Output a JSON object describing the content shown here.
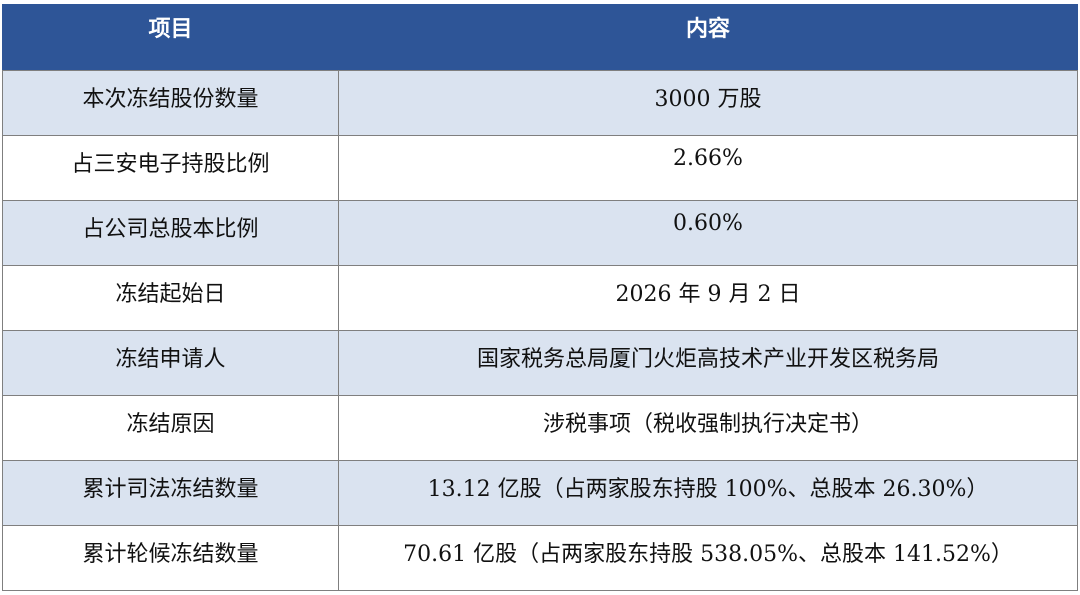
{
  "table": {
    "header": [
      "项目",
      "内容"
    ],
    "rows": [
      [
        "本次冻结股份数量",
        "3000 万股"
      ],
      [
        "占三安电子持股比例",
        "2.66%"
      ],
      [
        "占公司总股本比例",
        "0.60%"
      ],
      [
        "冻结起始日",
        "2026 年 9 月 2 日"
      ],
      [
        "冻结申请人",
        "国家税务总局厦门火炬高技术产业开发区税务局"
      ],
      [
        "冻结原因",
        "涉税事项（税收强制执行决定书）"
      ],
      [
        "累计司法冻结数量",
        "13.12 亿股（占两家股东持股 100%、总股本 26.30%）"
      ],
      [
        "累计轮候冻结数量",
        "70.61 亿股（占两家股东持股 538.05%、总股本 141.52%）"
      ]
    ]
  }
}
